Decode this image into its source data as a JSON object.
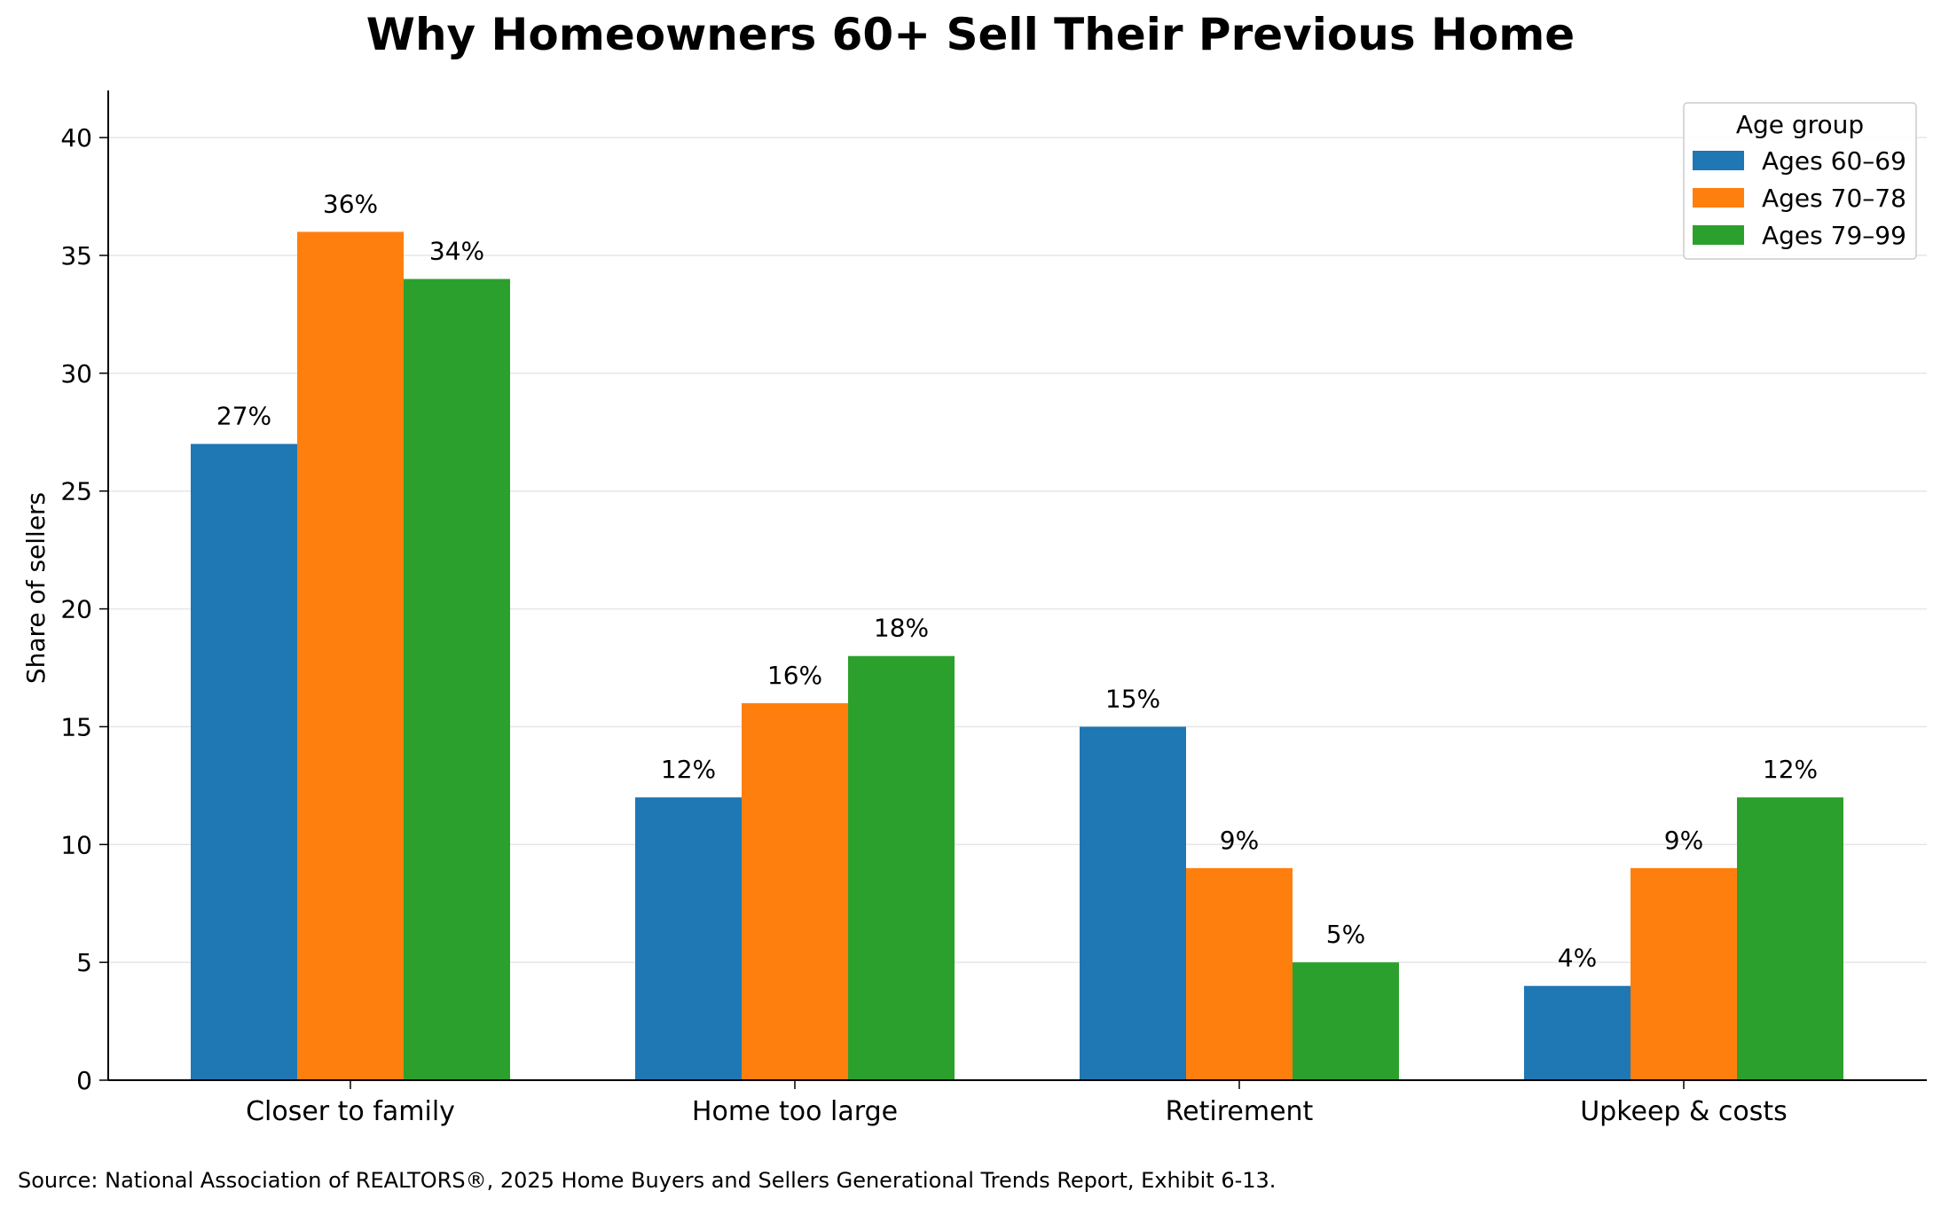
{
  "chart_data": {
    "type": "bar",
    "title": "Why Homeowners 60+ Sell Their Previous Home",
    "ylabel": "Share of sellers",
    "xlabel": "",
    "ylim": [
      0,
      42
    ],
    "yticks": [
      0,
      5,
      10,
      15,
      20,
      25,
      30,
      35,
      40
    ],
    "categories": [
      "Closer to family",
      "Home too large",
      "Retirement",
      "Upkeep & costs"
    ],
    "series": [
      {
        "name": "Ages 60–69",
        "color": "#1f77b4",
        "values": [
          27,
          12,
          15,
          4
        ],
        "labels": [
          "27%",
          "12%",
          "15%",
          "4%"
        ]
      },
      {
        "name": "Ages 70–78",
        "color": "#ff7f0e",
        "values": [
          36,
          16,
          9,
          9
        ],
        "labels": [
          "36%",
          "16%",
          "9%",
          "9%"
        ]
      },
      {
        "name": "Ages 79–99",
        "color": "#2ca02c",
        "values": [
          34,
          18,
          5,
          12
        ],
        "labels": [
          "34%",
          "18%",
          "5%",
          "12%"
        ]
      }
    ],
    "legend": {
      "title": "Age group",
      "placement": "top-right"
    },
    "grid": "y",
    "source": "Source: National Association of REALTORS®, 2025 Home Buyers and Sellers Generational Trends Report, Exhibit 6-13."
  }
}
